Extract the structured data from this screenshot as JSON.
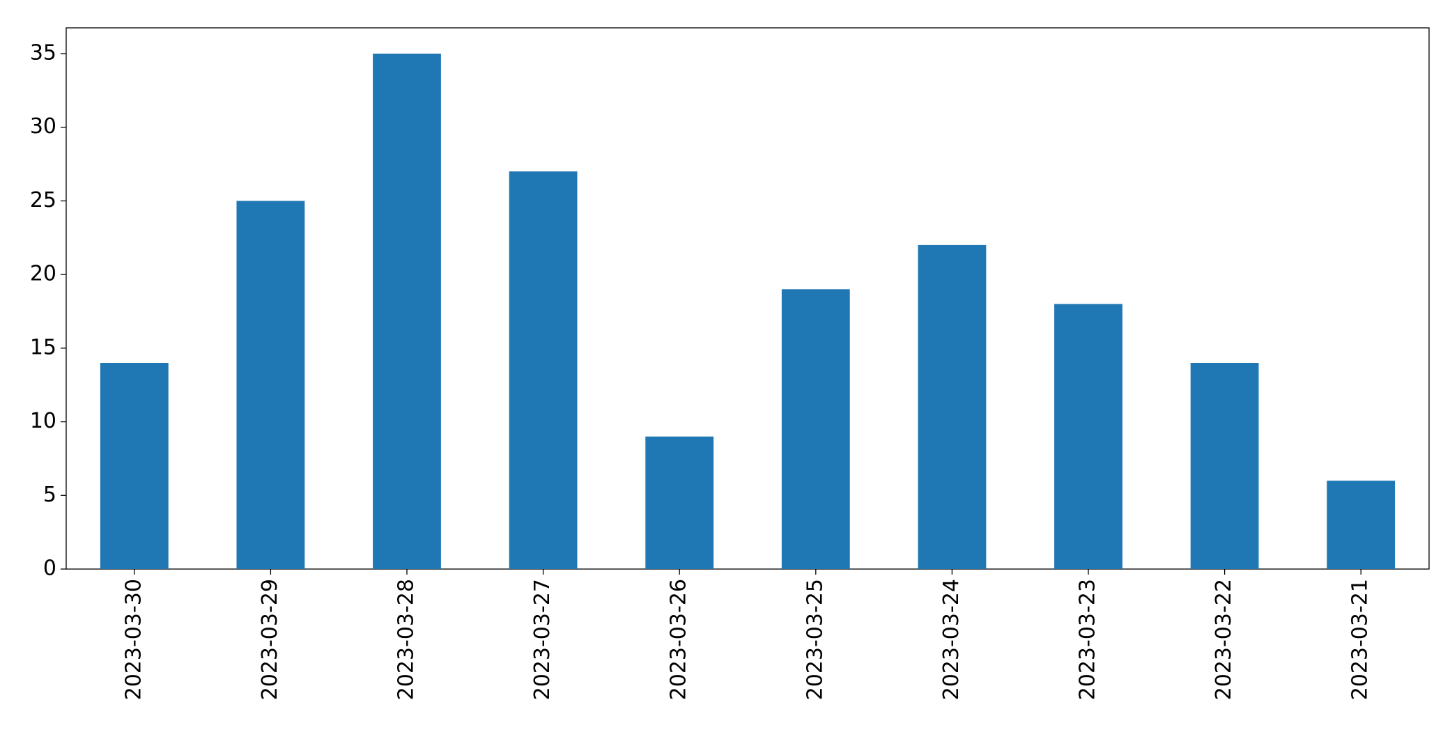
{
  "chart_data": {
    "type": "bar",
    "categories": [
      "2023-03-30",
      "2023-03-29",
      "2023-03-28",
      "2023-03-27",
      "2023-03-26",
      "2023-03-25",
      "2023-03-24",
      "2023-03-23",
      "2023-03-22",
      "2023-03-21"
    ],
    "values": [
      14,
      25,
      35,
      27,
      9,
      19,
      22,
      18,
      14,
      6
    ],
    "color": "#1f77b4",
    "ylim": [
      0,
      36.75
    ],
    "yticks": [
      0,
      5,
      10,
      15,
      20,
      25,
      30,
      35
    ],
    "grid": false
  }
}
